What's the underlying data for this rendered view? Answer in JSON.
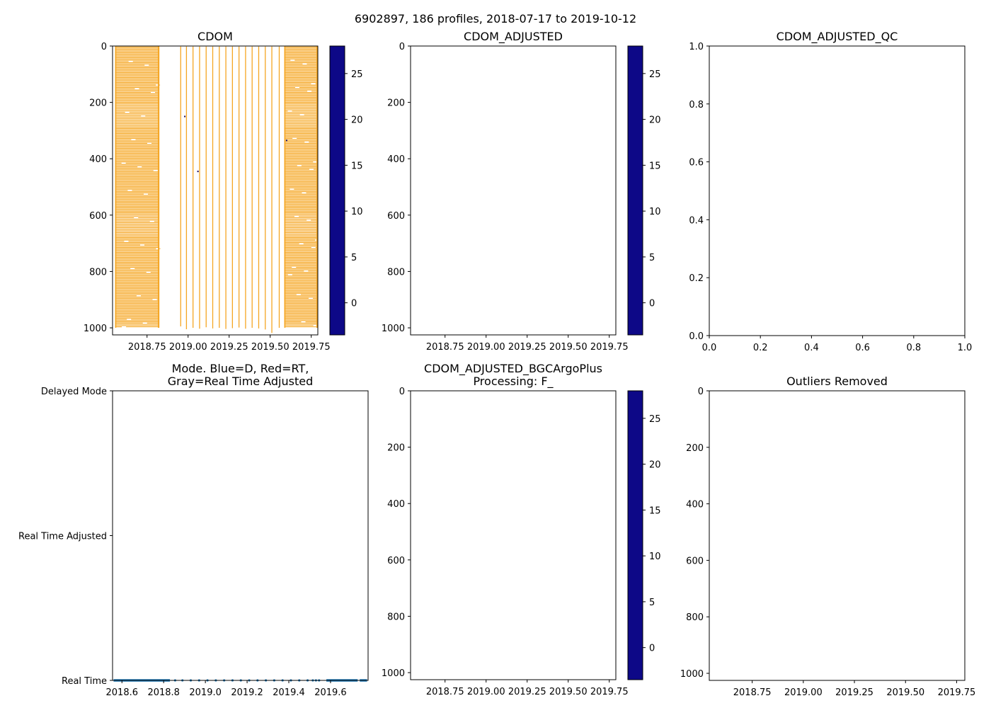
{
  "figure": {
    "suptitle": "6902897, 186 profiles, 2018-07-17 to 2019-10-12"
  },
  "colormap": [
    "#0d0887",
    "#46039f",
    "#7201a8",
    "#9c179e",
    "#bd3786",
    "#d8576b",
    "#ed7953",
    "#fb9f3a",
    "#fdca26",
    "#f0f921"
  ],
  "data_color": "#f5a623",
  "series_color": "#1f77b4",
  "chart_data": [
    {
      "id": "cdom",
      "type": "heatmap",
      "title": "CDOM",
      "xlim": [
        2018.54,
        2019.79
      ],
      "ylim": [
        1025,
        0
      ],
      "xticks": [
        2018.75,
        2019.0,
        2019.25,
        2019.5,
        2019.75
      ],
      "xticklabels": [
        "2018.75",
        "2019.00",
        "2019.25",
        "2019.50",
        "2019.75"
      ],
      "yticks": [
        0,
        200,
        400,
        600,
        800,
        1000
      ],
      "yticklabels": [
        "0",
        "200",
        "400",
        "600",
        "800",
        "1000"
      ],
      "colorbar": {
        "range": [
          -3.5,
          28
        ],
        "ticks": [
          0,
          5,
          10,
          15,
          20,
          25
        ],
        "ticklabels": [
          "0",
          "5",
          "10",
          "15",
          "20",
          "25"
        ]
      },
      "dense_periods": [
        [
          2018.555,
          2018.825
        ],
        [
          2019.585,
          2019.79
        ]
      ],
      "profile_days": [
        2018.955,
        2018.99,
        2019.03,
        2019.07,
        2019.11,
        2019.15,
        2019.19,
        2019.23,
        2019.27,
        2019.31,
        2019.35,
        2019.39,
        2019.43,
        2019.47,
        2019.51,
        2019.555
      ],
      "approx_value": 1.5
    },
    {
      "id": "cdom-adjusted",
      "type": "heatmap",
      "title": "CDOM_ADJUSTED",
      "xlim": [
        2018.54,
        2019.79
      ],
      "ylim": [
        1025,
        0
      ],
      "xticks": [
        2018.75,
        2019.0,
        2019.25,
        2019.5,
        2019.75
      ],
      "xticklabels": [
        "2018.75",
        "2019.00",
        "2019.25",
        "2019.50",
        "2019.75"
      ],
      "yticks": [
        0,
        200,
        400,
        600,
        800,
        1000
      ],
      "yticklabels": [
        "0",
        "200",
        "400",
        "600",
        "800",
        "1000"
      ],
      "colorbar": {
        "range": [
          -3.5,
          28
        ],
        "ticks": [
          0,
          5,
          10,
          15,
          20,
          25
        ],
        "ticklabels": [
          "0",
          "5",
          "10",
          "15",
          "20",
          "25"
        ]
      }
    },
    {
      "id": "cdom-adjusted-qc",
      "type": "scatter",
      "title": "CDOM_ADJUSTED_QC",
      "xlim": [
        0,
        1
      ],
      "ylim": [
        0,
        1
      ],
      "xticks": [
        0,
        0.2,
        0.4,
        0.6,
        0.8,
        1.0
      ],
      "xticklabels": [
        "0.0",
        "0.2",
        "0.4",
        "0.6",
        "0.8",
        "1.0"
      ],
      "yticks": [
        0,
        0.2,
        0.4,
        0.6,
        0.8,
        1.0
      ],
      "yticklabels": [
        "0.0",
        "0.2",
        "0.4",
        "0.6",
        "0.8",
        "1.0"
      ]
    },
    {
      "id": "mode",
      "type": "scatter",
      "title_lines": [
        "Mode. Blue=D, Red=RT,",
        "Gray=Real Time Adjusted"
      ],
      "xlim": [
        2018.555,
        2019.78
      ],
      "ylim": [
        0,
        2
      ],
      "xticks": [
        2018.6,
        2018.8,
        2019.0,
        2019.2,
        2019.4,
        2019.6
      ],
      "xticklabels": [
        "2018.6",
        "2018.8",
        "2019.0",
        "2019.2",
        "2019.4",
        "2019.6"
      ],
      "yticks": [
        0,
        1,
        2
      ],
      "yticklabels": [
        "Real Time",
        "Real Time Adjusted",
        "Delayed Mode"
      ],
      "series": [
        {
          "name": "Real Time",
          "y": 0,
          "dense_ranges": [
            [
              2018.56,
              2018.83
            ],
            [
              2019.58,
              2019.73
            ],
            [
              2019.74,
              2019.775
            ]
          ],
          "points": [
            2018.855,
            2018.89,
            2018.93,
            2018.97,
            2019.01,
            2019.05,
            2019.09,
            2019.13,
            2019.17,
            2019.21,
            2019.25,
            2019.29,
            2019.33,
            2019.37,
            2019.41,
            2019.45,
            2019.49,
            2019.515,
            2019.53,
            2019.545
          ]
        }
      ]
    },
    {
      "id": "bgcargoplus",
      "type": "heatmap",
      "title_lines": [
        "CDOM_ADJUSTED_BGCArgoPlus",
        "Processing: F_"
      ],
      "xlim": [
        2018.54,
        2019.79
      ],
      "ylim": [
        1025,
        0
      ],
      "xticks": [
        2018.75,
        2019.0,
        2019.25,
        2019.5,
        2019.75
      ],
      "xticklabels": [
        "2018.75",
        "2019.00",
        "2019.25",
        "2019.50",
        "2019.75"
      ],
      "yticks": [
        0,
        200,
        400,
        600,
        800,
        1000
      ],
      "yticklabels": [
        "0",
        "200",
        "400",
        "600",
        "800",
        "1000"
      ],
      "colorbar": {
        "range": [
          -3.5,
          28
        ],
        "ticks": [
          0,
          5,
          10,
          15,
          20,
          25
        ],
        "ticklabels": [
          "0",
          "5",
          "10",
          "15",
          "20",
          "25"
        ]
      }
    },
    {
      "id": "outliers",
      "type": "scatter",
      "title": "Outliers Removed",
      "xlim": [
        2018.54,
        2019.79
      ],
      "ylim": [
        1025,
        0
      ],
      "xticks": [
        2018.75,
        2019.0,
        2019.25,
        2019.5,
        2019.75
      ],
      "xticklabels": [
        "2018.75",
        "2019.00",
        "2019.25",
        "2019.50",
        "2019.75"
      ],
      "yticks": [
        0,
        200,
        400,
        600,
        800,
        1000
      ],
      "yticklabels": [
        "0",
        "200",
        "400",
        "600",
        "800",
        "1000"
      ]
    }
  ]
}
